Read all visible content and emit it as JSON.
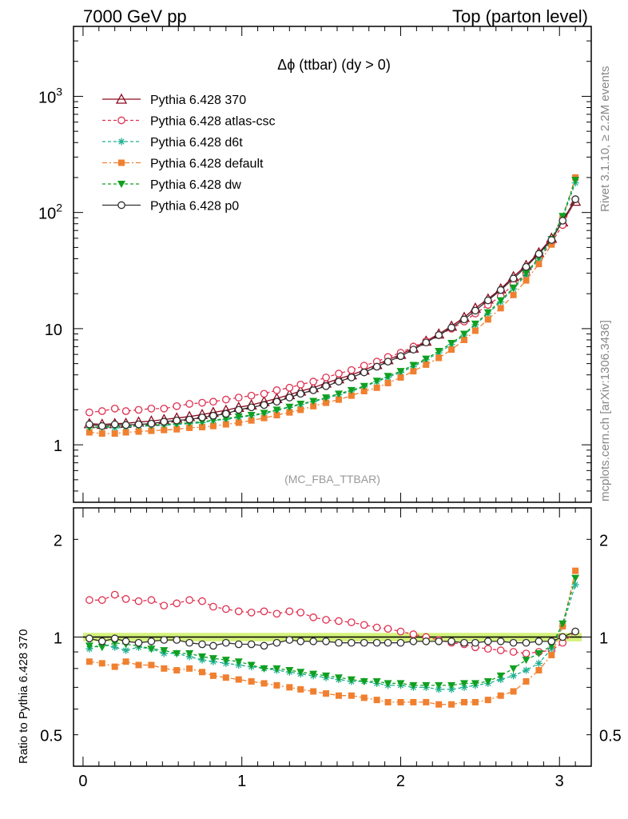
{
  "header": {
    "left": "7000 GeV pp",
    "right": "Top (parton level)"
  },
  "side_labels": {
    "top": "Rivet 3.1.10, ≥ 2.2M events",
    "bottom": "mcplots.cern.ch [arXiv:1306.3436]"
  },
  "chart_data": [
    {
      "type": "line",
      "title": "Δϕ (ttbar) (dy > 0)",
      "watermark": "(MC_FBA_TTBAR)",
      "xlim": [
        -0.06,
        3.2
      ],
      "ylim": [
        0.32,
        4000
      ],
      "log_y": true,
      "y_ticks": [
        {
          "value": 1,
          "base": "1",
          "exp": ""
        },
        {
          "value": 10,
          "base": "10",
          "exp": ""
        },
        {
          "value": 100,
          "base": "10",
          "exp": "2"
        },
        {
          "value": 1000,
          "base": "10",
          "exp": "3"
        }
      ],
      "legend_position": "top-left",
      "x": [
        0.04,
        0.12,
        0.2,
        0.27,
        0.35,
        0.43,
        0.51,
        0.59,
        0.67,
        0.75,
        0.82,
        0.9,
        0.98,
        1.06,
        1.14,
        1.22,
        1.3,
        1.37,
        1.45,
        1.53,
        1.61,
        1.69,
        1.77,
        1.85,
        1.92,
        2.0,
        2.08,
        2.16,
        2.24,
        2.32,
        2.4,
        2.47,
        2.55,
        2.63,
        2.71,
        2.79,
        2.87,
        2.95,
        3.02,
        3.1
      ],
      "series": [
        {
          "name": "Pythia 6.428 370",
          "color": "#8b0a1e",
          "marker": "triangle-open",
          "dash": "solid",
          "values": [
            1.52,
            1.5,
            1.52,
            1.53,
            1.57,
            1.6,
            1.65,
            1.7,
            1.75,
            1.82,
            1.9,
            1.98,
            2.1,
            2.2,
            2.35,
            2.5,
            2.7,
            2.9,
            3.1,
            3.4,
            3.7,
            4.0,
            4.4,
            4.9,
            5.4,
            6.0,
            6.8,
            7.8,
            9.0,
            10.5,
            12.5,
            15.0,
            18.0,
            22.0,
            28.0,
            35.0,
            45.0,
            60.0,
            83.0,
            125.0
          ]
        },
        {
          "name": "Pythia 6.428 atlas-csc",
          "color": "#e03050",
          "marker": "circle-open",
          "dash": "4,3",
          "values": [
            1.9,
            1.95,
            2.05,
            1.95,
            2.0,
            2.05,
            2.05,
            2.15,
            2.25,
            2.3,
            2.35,
            2.45,
            2.55,
            2.65,
            2.75,
            2.95,
            3.1,
            3.3,
            3.5,
            3.8,
            4.1,
            4.4,
            4.8,
            5.2,
            5.7,
            6.2,
            7.0,
            7.8,
            8.8,
            10.0,
            11.5,
            13.5,
            16.0,
            19.0,
            24.0,
            30.0,
            40.0,
            55.0,
            78.0,
            130.0
          ]
        },
        {
          "name": "Pythia 6.428 d6t",
          "color": "#20b090",
          "marker": "star",
          "dash": "4,3",
          "values": [
            1.4,
            1.42,
            1.4,
            1.42,
            1.45,
            1.45,
            1.47,
            1.5,
            1.52,
            1.55,
            1.62,
            1.65,
            1.72,
            1.78,
            1.85,
            1.98,
            2.1,
            2.22,
            2.35,
            2.5,
            2.7,
            2.9,
            3.15,
            3.5,
            3.8,
            4.2,
            4.7,
            5.4,
            6.2,
            7.3,
            8.8,
            10.8,
            13.5,
            17.0,
            22.0,
            29.0,
            40.0,
            57.0,
            90.0,
            180.0
          ]
        },
        {
          "name": "Pythia 6.428 default",
          "color": "#f08030",
          "marker": "square",
          "dash": "6,3,2,3",
          "values": [
            1.28,
            1.25,
            1.25,
            1.28,
            1.3,
            1.32,
            1.34,
            1.36,
            1.4,
            1.42,
            1.45,
            1.5,
            1.55,
            1.62,
            1.7,
            1.8,
            1.9,
            2.0,
            2.15,
            2.3,
            2.45,
            2.65,
            2.9,
            3.1,
            3.4,
            3.8,
            4.3,
            4.9,
            5.6,
            6.6,
            8.0,
            9.6,
            12.0,
            15.0,
            19.5,
            26.0,
            36.0,
            53.0,
            90.0,
            200.0
          ]
        },
        {
          "name": "Pythia 6.428 dw",
          "color": "#10a020",
          "marker": "triangle-down",
          "dash": "4,3",
          "values": [
            1.42,
            1.42,
            1.45,
            1.45,
            1.47,
            1.47,
            1.5,
            1.52,
            1.55,
            1.58,
            1.63,
            1.68,
            1.75,
            1.8,
            1.88,
            2.0,
            2.12,
            2.25,
            2.38,
            2.55,
            2.75,
            2.95,
            3.2,
            3.55,
            3.9,
            4.3,
            4.85,
            5.5,
            6.4,
            7.5,
            9.0,
            11.0,
            13.8,
            17.5,
            22.5,
            30.0,
            41.0,
            59.0,
            93.0,
            190.0
          ]
        },
        {
          "name": "Pythia 6.428 p0",
          "color": "#303030",
          "marker": "circle-open",
          "dash": "solid",
          "values": [
            1.5,
            1.45,
            1.5,
            1.48,
            1.5,
            1.52,
            1.58,
            1.62,
            1.65,
            1.72,
            1.78,
            1.85,
            2.0,
            2.1,
            2.2,
            2.35,
            2.55,
            2.75,
            2.95,
            3.2,
            3.5,
            3.8,
            4.2,
            4.7,
            5.2,
            5.8,
            6.6,
            7.6,
            8.8,
            10.2,
            12.0,
            14.3,
            17.5,
            21.5,
            27.0,
            34.0,
            44.0,
            58.0,
            85.0,
            130.0
          ]
        }
      ]
    },
    {
      "type": "line",
      "ylabel": "Ratio to Pythia 6.428 370",
      "xlim": [
        -0.06,
        3.2
      ],
      "ylim": [
        0.4,
        2.5
      ],
      "log_y": true,
      "y_ticks": [
        {
          "value": 0.5,
          "label": "0.5"
        },
        {
          "value": 1,
          "label": "1"
        },
        {
          "value": 2,
          "label": "2"
        }
      ],
      "x_ticks": [
        {
          "value": 0,
          "label": "0"
        },
        {
          "value": 1,
          "label": "1"
        },
        {
          "value": 2,
          "label": "2"
        },
        {
          "value": 3,
          "label": "3"
        }
      ],
      "reference_band": {
        "low": 0.97,
        "high": 1.03,
        "color": "#ccf064"
      },
      "x": [
        0.04,
        0.12,
        0.2,
        0.27,
        0.35,
        0.43,
        0.51,
        0.59,
        0.67,
        0.75,
        0.82,
        0.9,
        0.98,
        1.06,
        1.14,
        1.22,
        1.3,
        1.37,
        1.45,
        1.53,
        1.61,
        1.69,
        1.77,
        1.85,
        1.92,
        2.0,
        2.08,
        2.16,
        2.24,
        2.32,
        2.4,
        2.47,
        2.55,
        2.63,
        2.71,
        2.79,
        2.87,
        2.95,
        3.02,
        3.1
      ],
      "series": [
        {
          "name": "Pythia 6.428 370",
          "color": "#8b0a1e",
          "marker": "triangle-open",
          "dash": "solid",
          "values": [
            1.0,
            1.0,
            1.0,
            1.0,
            1.0,
            1.0,
            1.0,
            1.0,
            1.0,
            1.0,
            1.0,
            1.0,
            1.0,
            1.0,
            1.0,
            1.0,
            1.0,
            1.0,
            1.0,
            1.0,
            1.0,
            1.0,
            1.0,
            1.0,
            1.0,
            1.0,
            1.0,
            1.0,
            1.0,
            1.0,
            1.0,
            1.0,
            1.0,
            1.0,
            1.0,
            1.0,
            1.0,
            1.0,
            1.0,
            1.0
          ]
        },
        {
          "name": "Pythia 6.428 atlas-csc",
          "color": "#e03050",
          "marker": "circle-open",
          "dash": "4,3",
          "values": [
            1.3,
            1.3,
            1.35,
            1.31,
            1.29,
            1.3,
            1.25,
            1.27,
            1.3,
            1.29,
            1.24,
            1.22,
            1.2,
            1.19,
            1.2,
            1.18,
            1.2,
            1.19,
            1.15,
            1.13,
            1.12,
            1.11,
            1.09,
            1.07,
            1.06,
            1.04,
            1.02,
            1.0,
            0.98,
            0.96,
            0.95,
            0.93,
            0.92,
            0.91,
            0.9,
            0.89,
            0.9,
            0.91,
            0.96,
            1.04
          ]
        },
        {
          "name": "Pythia 6.428 d6t",
          "color": "#20b090",
          "marker": "star",
          "dash": "4,3",
          "values": [
            0.92,
            0.95,
            0.93,
            0.91,
            0.93,
            0.92,
            0.89,
            0.89,
            0.87,
            0.85,
            0.84,
            0.83,
            0.82,
            0.81,
            0.8,
            0.79,
            0.78,
            0.77,
            0.76,
            0.75,
            0.74,
            0.73,
            0.73,
            0.72,
            0.71,
            0.71,
            0.7,
            0.7,
            0.69,
            0.69,
            0.7,
            0.71,
            0.72,
            0.74,
            0.76,
            0.79,
            0.83,
            0.92,
            1.08,
            1.45
          ]
        },
        {
          "name": "Pythia 6.428 default",
          "color": "#f08030",
          "marker": "square",
          "dash": "6,3,2,3",
          "values": [
            0.84,
            0.83,
            0.81,
            0.84,
            0.82,
            0.82,
            0.8,
            0.79,
            0.8,
            0.78,
            0.76,
            0.75,
            0.74,
            0.73,
            0.72,
            0.71,
            0.7,
            0.69,
            0.68,
            0.67,
            0.66,
            0.66,
            0.65,
            0.64,
            0.63,
            0.63,
            0.63,
            0.63,
            0.62,
            0.62,
            0.63,
            0.63,
            0.64,
            0.66,
            0.68,
            0.73,
            0.79,
            0.88,
            1.08,
            1.6
          ]
        },
        {
          "name": "Pythia 6.428 dw",
          "color": "#10a020",
          "marker": "triangle-down",
          "dash": "4,3",
          "values": [
            0.94,
            0.93,
            0.96,
            0.95,
            0.94,
            0.92,
            0.91,
            0.89,
            0.89,
            0.87,
            0.86,
            0.85,
            0.84,
            0.82,
            0.8,
            0.8,
            0.79,
            0.78,
            0.77,
            0.76,
            0.75,
            0.74,
            0.73,
            0.73,
            0.72,
            0.72,
            0.71,
            0.71,
            0.71,
            0.71,
            0.72,
            0.72,
            0.73,
            0.76,
            0.8,
            0.85,
            0.89,
            0.94,
            1.1,
            1.52
          ]
        },
        {
          "name": "Pythia 6.428 p0",
          "color": "#303030",
          "marker": "circle-open",
          "dash": "solid",
          "values": [
            0.99,
            0.97,
            0.99,
            0.97,
            0.96,
            0.97,
            0.98,
            0.98,
            0.96,
            0.95,
            0.94,
            0.96,
            0.95,
            0.95,
            0.94,
            0.96,
            0.98,
            0.97,
            0.97,
            0.97,
            0.96,
            0.96,
            0.96,
            0.96,
            0.96,
            0.96,
            0.97,
            0.97,
            0.97,
            0.97,
            0.96,
            0.96,
            0.97,
            0.97,
            0.96,
            0.96,
            0.97,
            0.97,
            1.0,
            1.04
          ]
        }
      ]
    }
  ]
}
